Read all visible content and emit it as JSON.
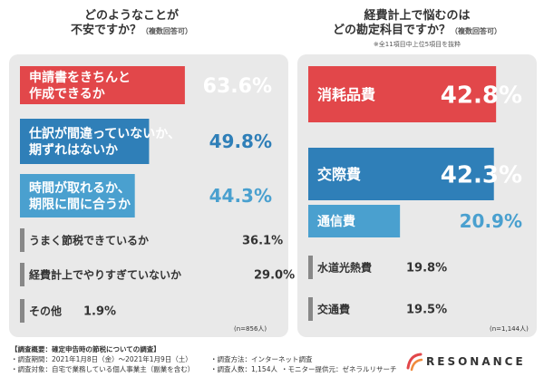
{
  "left": {
    "title_line1": "どのようなことが",
    "title_line2": "不安ですか？",
    "title_suffix": "（複数回答可）",
    "n_label": "(n=856人)"
  },
  "right": {
    "title_line1": "経費計上で悩むのは",
    "title_line2": "どの勘定科目ですか？",
    "title_suffix": "（複数回答可）",
    "subnote": "※全11項目中上位5項目を抜粋",
    "n_label": "(n=1,144人)"
  },
  "footer": {
    "survey_heading": "【調査概要：確定申告時の節税についての調査】",
    "period": "・調査期間：2021年1月8日（金）〜2021年1月9日（土）",
    "target": "・調査対象：自宅で業務している個人事業主（副業を含む）",
    "method": "・調査方法：インターネット調査",
    "respondents": "・調査人数：1,154人",
    "monitor": "・モニター提供元：ゼネラルリサーチ",
    "brand": "RESONANCE"
  },
  "chart_data": [
    {
      "type": "bar",
      "categories": [
        "申請書をきちんと\n作成できるか",
        "仕訳が間違っていないか、\n期ずれはないか",
        "時間が取れるか、\n期限に間に合うか",
        "うまく節税できているか",
        "経費計上でやりすぎていないか",
        "その他"
      ],
      "values": [
        63.6,
        49.8,
        44.3,
        36.1,
        29.0,
        1.9
      ],
      "value_labels": [
        "63.6%",
        "49.8%",
        "44.3%",
        "36.1%",
        "29.0%",
        "1.9%"
      ],
      "colors": [
        "#e2474a",
        "#2f7fb8",
        "#4aa0cf",
        "#d0d0d0",
        "#d0d0d0",
        "#d0d0d0"
      ],
      "xlim": [
        0,
        100
      ]
    },
    {
      "type": "bar",
      "categories": [
        "消耗品費",
        "交際費",
        "通信費",
        "水道光熱費",
        "交通費"
      ],
      "values": [
        42.8,
        42.3,
        20.9,
        19.8,
        19.5
      ],
      "value_labels": [
        "42.8%",
        "42.3%",
        "20.9%",
        "19.8%",
        "19.5%"
      ],
      "colors": [
        "#e2474a",
        "#2f7fb8",
        "#4aa0cf",
        "#d0d0d0",
        "#d0d0d0"
      ],
      "xlim": [
        0,
        50
      ]
    }
  ]
}
